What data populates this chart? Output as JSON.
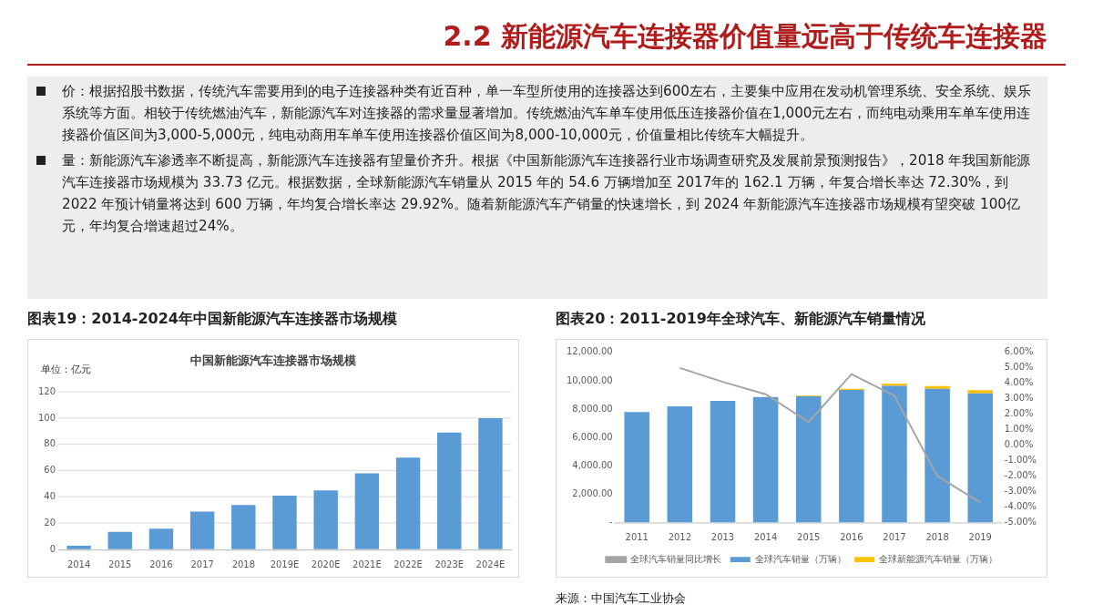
{
  "chart_data": [
    {
      "type": "other",
      "title": "2.2 新能源汽车连接器价值量远高于传统车连接器",
      "annotations": [
        "价：根据招股书数据，传统汽车需要用到的电子连接器种类有近百种，单一车型所使用的连接器达到600左右，主要集中应用在发动机管理系统、安全系统、娱乐系统等方面。相较于传统燃油汽车，新能源汽车对连接器的需求量显著增加。传统燃油汽车单车使用低压连接器价值在1,000元左右，而纯电动乘用车单车使用连接器价值区间为3,000-5,000元，纯电动商用车单车使用连接器价值区间为8,000-10,000元，价值量相比传统车大幅提升。",
        "量：新能源汽车渗透率不断提高，新能源汽车连接器有望量价齐升。根据《中国新能源汽车连接器行业市场调查研究及发展前景预测报告》，2018 年我国新能源汽车连接器市场规模为 33.73 亿元。根据数据，全球新能源汽车销量从 2015 年的 54.6 万辆增加至 2017年的 162.1 万辆，年复合增长率达 72.30%，到 2022 年预计销量将达到 600 万辆，年均复合增长率达 29.92%。随着新能源汽车产销量的快速增长，到 2024 年新能源汽车连接器市场规模有望突破 100亿元，年均复合增速超过24%。"
      ]
    },
    {
      "type": "bar",
      "title": "图表19：2014-2024年中国新能源汽车连接器市场规模",
      "subtitle": "中国新能源汽车连接器市场规模",
      "ylabel": "单位：亿元",
      "categories": [
        "2014",
        "2015",
        "2016",
        "2017",
        "2018",
        "2019E",
        "2020E",
        "2021E",
        "2022E",
        "2023E",
        "2024E"
      ],
      "series": [
        {
          "color": "#5b9bd5",
          "values": [
            3,
            13.5,
            16,
            29,
            34,
            41,
            45,
            58,
            70,
            89,
            100
          ]
        }
      ],
      "ylim": [
        0,
        120
      ],
      "yticks": [
        0,
        20,
        40,
        60,
        80,
        100,
        120
      ],
      "grid": "y",
      "legend": false
    },
    {
      "type": "bar",
      "title": "图表20：2011-2019年全球汽车、新能源汽车销量情况",
      "annotations": [
        "来源：中国汽车工业协会"
      ],
      "categories": [
        "2011",
        "2012",
        "2013",
        "2014",
        "2015",
        "2016",
        "2017",
        "2018",
        "2019"
      ],
      "stacked": true,
      "series": [
        {
          "name": "全球汽车销量（万辆）",
          "color": "#5b9bd5",
          "values": [
            7800,
            8200,
            8580,
            8860,
            8900,
            9360,
            9640,
            9430,
            9120
          ]
        },
        {
          "name": "全球新能源汽车销量（万辆）",
          "color": "#ffc000",
          "values": [
            null,
            null,
            null,
            null,
            55,
            70,
            160,
            200,
            220
          ]
        },
        {
          "name": "全球汽车销量同比增长",
          "type": "line",
          "axis": "y2",
          "color": "#a5a5a5",
          "values": [
            null,
            5.0,
            4.1,
            3.3,
            1.5,
            4.6,
            3.2,
            -2.0,
            -3.7
          ]
        }
      ],
      "ylim": [
        0,
        12000
      ],
      "yticks": [
        {
          "value": 0,
          "label": "-"
        },
        {
          "value": 2000,
          "label": "2,000.00"
        },
        {
          "value": 4000,
          "label": "4,000.00"
        },
        {
          "value": 6000,
          "label": "6,000.00"
        },
        {
          "value": 8000,
          "label": "8,000.00"
        },
        {
          "value": 10000,
          "label": "10,000.00"
        },
        {
          "value": 12000,
          "label": "12,000.00"
        }
      ],
      "y2lim": [
        -5,
        6
      ],
      "y2ticks": [
        {
          "value": -5,
          "label": "-5.00%"
        },
        {
          "value": -4,
          "label": "-4.00%"
        },
        {
          "value": -3,
          "label": "-3.00%"
        },
        {
          "value": -2,
          "label": "-2.00%"
        },
        {
          "value": -1,
          "label": "-1.00%"
        },
        {
          "value": 0,
          "label": "0.00%"
        },
        {
          "value": 1,
          "label": "1.00%"
        },
        {
          "value": 2,
          "label": "2.00%"
        },
        {
          "value": 3,
          "label": "3.00%"
        },
        {
          "value": 4,
          "label": "4.00%"
        },
        {
          "value": 5,
          "label": "5.00%"
        },
        {
          "value": 6,
          "label": "6.00%"
        }
      ],
      "grid": false,
      "legend": "bottom"
    }
  ]
}
